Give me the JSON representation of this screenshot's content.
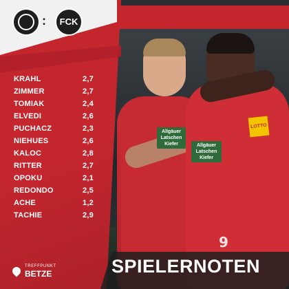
{
  "logos": {
    "home_icon": "hansa-rostock-crest-icon",
    "away_icon": "fck-crest-icon",
    "away_text": "FCK",
    "separator": ":"
  },
  "ratings": [
    {
      "name": "KRAHL",
      "grade": "2,7"
    },
    {
      "name": "ZIMMER",
      "grade": "2,7"
    },
    {
      "name": "TOMIAK",
      "grade": "2,4"
    },
    {
      "name": "ELVEDI",
      "grade": "2,6"
    },
    {
      "name": "PUCHACZ",
      "grade": "2,3"
    },
    {
      "name": "NIEHUES",
      "grade": "2,6"
    },
    {
      "name": "KALOC",
      "grade": "2,8"
    },
    {
      "name": "RITTER",
      "grade": "2,7"
    },
    {
      "name": "OPOKU",
      "grade": "2,1"
    },
    {
      "name": "REDONDO",
      "grade": "2,5"
    },
    {
      "name": "ACHE",
      "grade": "1,2"
    },
    {
      "name": "TACHIE",
      "grade": "2,9"
    }
  ],
  "brand": {
    "small": "TREFFPUNKT",
    "big": "BETZE"
  },
  "title": "SPIELERNOTEN",
  "photo": {
    "sponsor_text_1": "Allgäuer Latschen Kiefer",
    "sponsor_text_2": "Allgäuer Latschen Kiefer",
    "lotto_text": "LOTTO",
    "shirt_number": "9"
  },
  "colors": {
    "panel_red": "#c4262e",
    "text_white": "#ffffff",
    "dark": "#1e1e1e"
  }
}
